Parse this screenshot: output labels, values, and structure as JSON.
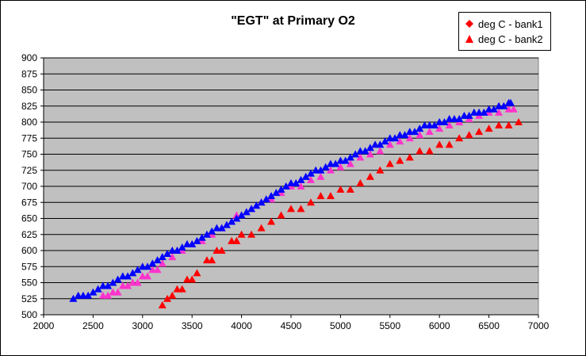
{
  "chart_data": {
    "type": "scatter",
    "title": "\"EGT\" at Primary O2",
    "xlabel": "",
    "ylabel": "",
    "xlim": [
      2000,
      7000
    ],
    "ylim": [
      500,
      900
    ],
    "x_ticks": [
      "2000",
      "2500",
      "3000",
      "3500",
      "4000",
      "4500",
      "5000",
      "5500",
      "6000",
      "6500",
      "7000"
    ],
    "y_ticks": [
      "500",
      "525",
      "550",
      "575",
      "600",
      "625",
      "650",
      "675",
      "700",
      "725",
      "750",
      "775",
      "800",
      "825",
      "850",
      "875",
      "900"
    ],
    "grid": "horizontal",
    "legend_position": "top-right",
    "plot_background": "#c0c0c0",
    "legend": [
      {
        "label": "deg C - bank1",
        "marker": "diamond",
        "color": "#ff0000"
      },
      {
        "label": "deg C - bank2",
        "marker": "triangle",
        "color": "#ff0000"
      }
    ],
    "series": [
      {
        "marker": "triangle",
        "color": "#ff0000",
        "points": [
          [
            3200,
            515
          ],
          [
            3250,
            525
          ],
          [
            3300,
            530
          ],
          [
            3350,
            540
          ],
          [
            3400,
            540
          ],
          [
            3450,
            555
          ],
          [
            3500,
            555
          ],
          [
            3550,
            565
          ],
          [
            3650,
            585
          ],
          [
            3700,
            585
          ],
          [
            3750,
            600
          ],
          [
            3800,
            600
          ],
          [
            3900,
            615
          ],
          [
            3950,
            615
          ],
          [
            4000,
            625
          ],
          [
            4100,
            625
          ],
          [
            4200,
            635
          ],
          [
            4300,
            645
          ],
          [
            4400,
            655
          ],
          [
            4500,
            665
          ],
          [
            4600,
            665
          ],
          [
            4700,
            675
          ],
          [
            4800,
            685
          ],
          [
            4900,
            685
          ],
          [
            5000,
            695
          ],
          [
            5100,
            695
          ],
          [
            5200,
            705
          ],
          [
            5300,
            715
          ],
          [
            5400,
            725
          ],
          [
            5500,
            735
          ],
          [
            5600,
            740
          ],
          [
            5700,
            745
          ],
          [
            5800,
            755
          ],
          [
            5900,
            755
          ],
          [
            6000,
            765
          ],
          [
            6100,
            765
          ],
          [
            6200,
            775
          ],
          [
            6300,
            780
          ],
          [
            6400,
            785
          ],
          [
            6500,
            790
          ],
          [
            6600,
            795
          ],
          [
            6700,
            795
          ],
          [
            6800,
            800
          ]
        ]
      },
      {
        "marker": "triangle",
        "color": "#ff33cc",
        "points": [
          [
            2600,
            530
          ],
          [
            2650,
            530
          ],
          [
            2700,
            535
          ],
          [
            2750,
            535
          ],
          [
            2800,
            545
          ],
          [
            2850,
            545
          ],
          [
            2900,
            550
          ],
          [
            2950,
            550
          ],
          [
            3000,
            560
          ],
          [
            3050,
            560
          ],
          [
            3100,
            570
          ],
          [
            3150,
            570
          ],
          [
            3200,
            580
          ],
          [
            3300,
            590
          ],
          [
            3400,
            600
          ],
          [
            3500,
            610
          ],
          [
            3600,
            615
          ],
          [
            3700,
            625
          ],
          [
            3800,
            635
          ],
          [
            3900,
            645
          ],
          [
            3950,
            655
          ],
          [
            4000,
            655
          ],
          [
            4100,
            665
          ],
          [
            4200,
            675
          ],
          [
            4300,
            680
          ],
          [
            4400,
            690
          ],
          [
            4500,
            700
          ],
          [
            4600,
            700
          ],
          [
            4700,
            710
          ],
          [
            4800,
            715
          ],
          [
            4900,
            725
          ],
          [
            5000,
            730
          ],
          [
            5100,
            735
          ],
          [
            5200,
            745
          ],
          [
            5300,
            750
          ],
          [
            5400,
            755
          ],
          [
            5500,
            765
          ],
          [
            5600,
            770
          ],
          [
            5700,
            775
          ],
          [
            5800,
            780
          ],
          [
            5900,
            785
          ],
          [
            6000,
            790
          ],
          [
            6100,
            795
          ],
          [
            6200,
            800
          ],
          [
            6300,
            805
          ],
          [
            6400,
            810
          ],
          [
            6500,
            815
          ],
          [
            6600,
            815
          ],
          [
            6700,
            820
          ],
          [
            6750,
            820
          ]
        ]
      },
      {
        "marker": "triangle",
        "color": "#0000ff",
        "points": [
          [
            2300,
            525
          ],
          [
            2350,
            530
          ],
          [
            2400,
            530
          ],
          [
            2450,
            530
          ],
          [
            2500,
            535
          ],
          [
            2550,
            540
          ],
          [
            2600,
            545
          ],
          [
            2650,
            545
          ],
          [
            2700,
            550
          ],
          [
            2750,
            555
          ],
          [
            2800,
            560
          ],
          [
            2850,
            560
          ],
          [
            2900,
            565
          ],
          [
            2950,
            570
          ],
          [
            3000,
            575
          ],
          [
            3050,
            575
          ],
          [
            3100,
            580
          ],
          [
            3150,
            585
          ],
          [
            3200,
            590
          ],
          [
            3250,
            595
          ],
          [
            3300,
            600
          ],
          [
            3350,
            600
          ],
          [
            3400,
            605
          ],
          [
            3450,
            610
          ],
          [
            3500,
            610
          ],
          [
            3550,
            615
          ],
          [
            3600,
            620
          ],
          [
            3650,
            625
          ],
          [
            3700,
            630
          ],
          [
            3750,
            635
          ],
          [
            3800,
            635
          ],
          [
            3850,
            640
          ],
          [
            3900,
            645
          ],
          [
            3950,
            650
          ],
          [
            4000,
            655
          ],
          [
            4050,
            660
          ],
          [
            4100,
            665
          ],
          [
            4150,
            670
          ],
          [
            4200,
            675
          ],
          [
            4250,
            680
          ],
          [
            4300,
            685
          ],
          [
            4350,
            690
          ],
          [
            4400,
            695
          ],
          [
            4450,
            700
          ],
          [
            4500,
            705
          ],
          [
            4550,
            705
          ],
          [
            4600,
            710
          ],
          [
            4650,
            715
          ],
          [
            4700,
            720
          ],
          [
            4750,
            725
          ],
          [
            4800,
            725
          ],
          [
            4850,
            730
          ],
          [
            4900,
            735
          ],
          [
            4950,
            735
          ],
          [
            5000,
            740
          ],
          [
            5050,
            740
          ],
          [
            5100,
            745
          ],
          [
            5150,
            750
          ],
          [
            5200,
            755
          ],
          [
            5250,
            755
          ],
          [
            5300,
            760
          ],
          [
            5350,
            765
          ],
          [
            5400,
            765
          ],
          [
            5450,
            770
          ],
          [
            5500,
            775
          ],
          [
            5550,
            775
          ],
          [
            5600,
            780
          ],
          [
            5650,
            780
          ],
          [
            5700,
            785
          ],
          [
            5750,
            785
          ],
          [
            5800,
            790
          ],
          [
            5850,
            795
          ],
          [
            5900,
            795
          ],
          [
            5950,
            795
          ],
          [
            6000,
            800
          ],
          [
            6050,
            800
          ],
          [
            6100,
            805
          ],
          [
            6150,
            805
          ],
          [
            6200,
            805
          ],
          [
            6250,
            810
          ],
          [
            6300,
            810
          ],
          [
            6350,
            815
          ],
          [
            6400,
            815
          ],
          [
            6450,
            815
          ],
          [
            6500,
            820
          ],
          [
            6550,
            820
          ],
          [
            6600,
            825
          ],
          [
            6650,
            825
          ],
          [
            6700,
            830
          ],
          [
            6720,
            830
          ]
        ]
      }
    ]
  }
}
